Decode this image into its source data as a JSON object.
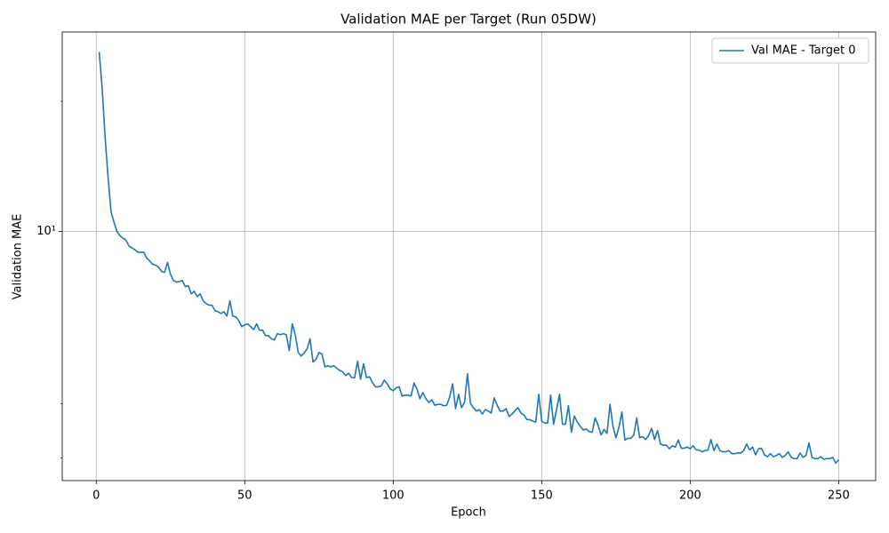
{
  "chart_data": {
    "type": "line",
    "title": "Validation MAE per Target (Run 05DW)",
    "x_label": "Epoch",
    "y_label": "Validation MAE",
    "x": [
      1,
      2,
      3,
      4,
      5,
      6,
      7,
      8,
      9,
      10,
      11,
      12,
      13,
      14,
      15,
      16,
      17,
      18,
      19,
      20,
      21,
      22,
      23,
      24,
      25,
      26,
      27,
      28,
      29,
      30,
      31,
      32,
      33,
      34,
      35,
      36,
      37,
      38,
      39,
      40,
      41,
      42,
      43,
      44,
      45,
      46,
      47,
      48,
      49,
      50,
      51,
      52,
      53,
      54,
      55,
      56,
      57,
      58,
      59,
      60,
      61,
      62,
      63,
      64,
      65,
      66,
      67,
      68,
      69,
      70,
      71,
      72,
      73,
      74,
      75,
      76,
      77,
      78,
      79,
      80,
      81,
      82,
      83,
      84,
      85,
      86,
      87,
      88,
      89,
      90,
      91,
      92,
      93,
      94,
      95,
      96,
      97,
      98,
      99,
      100,
      101,
      102,
      103,
      104,
      105,
      106,
      107,
      108,
      109,
      110,
      111,
      112,
      113,
      114,
      115,
      116,
      117,
      118,
      119,
      120,
      121,
      122,
      123,
      124,
      125,
      126,
      127,
      128,
      129,
      130,
      131,
      132,
      133,
      134,
      135,
      136,
      137,
      138,
      139,
      140,
      141,
      142,
      143,
      144,
      145,
      146,
      147,
      148,
      149,
      150,
      151,
      152,
      153,
      154,
      155,
      156,
      157,
      158,
      159,
      160,
      161,
      162,
      163,
      164,
      165,
      166,
      167,
      168,
      169,
      170,
      171,
      172,
      173,
      174,
      175,
      176,
      177,
      178,
      179,
      180,
      181,
      182,
      183,
      184,
      185,
      186,
      187,
      188,
      189,
      190,
      191,
      192,
      193,
      194,
      195,
      196,
      197,
      198,
      199,
      200,
      201,
      202,
      203,
      204,
      205,
      206,
      207,
      208,
      209,
      210,
      211,
      212,
      213,
      214,
      215,
      216,
      217,
      218,
      219,
      220,
      221,
      222,
      223,
      224,
      225,
      226,
      227,
      228,
      229,
      230,
      231,
      232,
      233,
      234,
      235,
      236,
      237,
      238,
      239,
      240,
      241,
      242,
      243,
      244,
      245,
      246,
      247,
      248,
      249,
      250
    ],
    "series": [
      {
        "name": "Val MAE - Target 0",
        "color": "#1f77b4",
        "values": [
          26.0,
          21.4,
          16.5,
          13.3,
          11.1,
          10.5,
          10.0,
          9.78,
          9.65,
          9.56,
          9.26,
          9.17,
          9.08,
          8.96,
          8.96,
          8.96,
          8.68,
          8.56,
          8.4,
          8.36,
          8.28,
          8.09,
          8.05,
          8.49,
          7.97,
          7.71,
          7.64,
          7.67,
          7.71,
          7.46,
          7.5,
          7.18,
          7.28,
          7.08,
          7.18,
          6.92,
          6.82,
          6.76,
          6.76,
          6.57,
          6.53,
          6.47,
          6.53,
          6.38,
          6.92,
          6.38,
          6.35,
          6.23,
          6.03,
          6.09,
          6.12,
          6.03,
          5.94,
          6.12,
          5.92,
          5.92,
          5.75,
          5.75,
          5.65,
          5.62,
          5.81,
          5.78,
          5.81,
          5.78,
          5.31,
          6.12,
          5.78,
          5.26,
          5.16,
          5.24,
          5.36,
          5.65,
          5.0,
          5.07,
          5.26,
          5.21,
          4.87,
          4.9,
          4.87,
          4.9,
          4.83,
          4.78,
          4.74,
          4.65,
          4.71,
          4.6,
          4.6,
          5.02,
          4.56,
          4.95,
          4.6,
          4.62,
          4.48,
          4.38,
          4.38,
          4.4,
          4.54,
          4.45,
          4.33,
          4.29,
          4.36,
          4.38,
          4.17,
          4.19,
          4.19,
          4.17,
          4.47,
          4.33,
          4.11,
          4.25,
          4.11,
          4.03,
          4.09,
          3.97,
          3.99,
          3.99,
          3.96,
          3.97,
          4.15,
          4.45,
          3.9,
          4.21,
          3.92,
          4.03,
          4.69,
          4.01,
          3.92,
          3.85,
          3.88,
          3.79,
          3.88,
          3.85,
          3.81,
          4.13,
          3.97,
          3.85,
          3.85,
          3.9,
          3.74,
          3.79,
          3.86,
          3.92,
          3.81,
          3.77,
          3.68,
          3.68,
          3.65,
          3.63,
          4.21,
          3.65,
          3.61,
          3.61,
          4.19,
          3.59,
          3.88,
          4.21,
          3.59,
          3.59,
          3.96,
          3.44,
          3.75,
          3.63,
          3.55,
          3.48,
          3.5,
          3.45,
          3.44,
          3.71,
          3.57,
          3.39,
          3.49,
          3.42,
          3.99,
          3.55,
          3.34,
          3.53,
          3.83,
          3.3,
          3.33,
          3.33,
          3.39,
          3.71,
          3.34,
          3.36,
          3.31,
          3.38,
          3.51,
          3.31,
          3.47,
          3.23,
          3.21,
          3.21,
          3.15,
          3.2,
          3.18,
          3.3,
          3.16,
          3.16,
          3.18,
          3.15,
          3.2,
          3.13,
          3.13,
          3.1,
          3.12,
          3.13,
          3.31,
          3.12,
          3.23,
          3.12,
          3.1,
          3.1,
          3.12,
          3.07,
          3.07,
          3.08,
          3.08,
          3.12,
          3.23,
          3.13,
          3.18,
          3.05,
          3.15,
          3.16,
          3.05,
          3.02,
          3.07,
          3.02,
          3.04,
          3.07,
          3.01,
          3.04,
          3.1,
          3.01,
          2.99,
          2.99,
          3.08,
          3.01,
          3.04,
          3.25,
          3.01,
          2.99,
          2.99,
          3.02,
          2.98,
          2.99,
          2.99,
          3.01,
          2.92,
          2.97
        ]
      }
    ],
    "xlim": [
      -11.45,
      262.45
    ],
    "xticks": [
      0,
      50,
      100,
      150,
      200,
      250
    ],
    "ylim": [
      2.66,
      28.9
    ],
    "yscale": "log",
    "yticks": [
      {
        "value": 10,
        "label": "10¹"
      }
    ],
    "yminorticks": [
      3,
      4,
      20
    ],
    "grid": true,
    "legend": "upper right"
  }
}
